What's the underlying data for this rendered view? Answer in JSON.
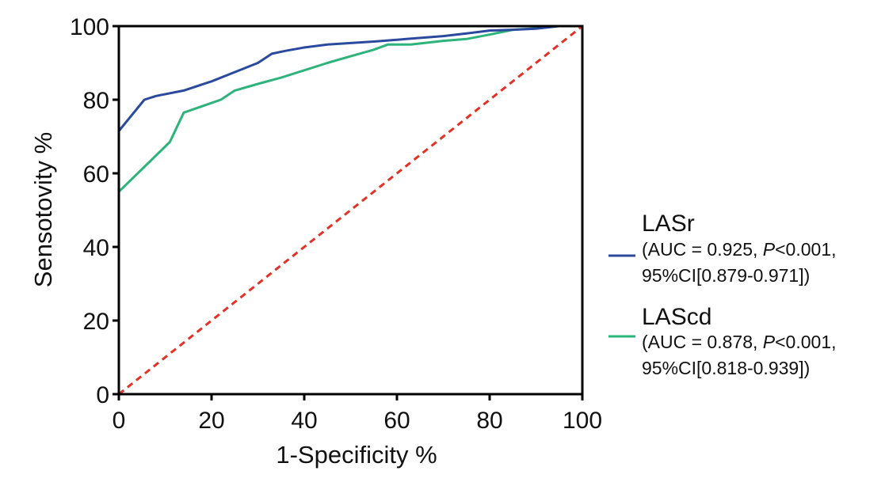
{
  "chart_data": {
    "type": "line",
    "xlabel": "1-Specificity %",
    "ylabel": "Sensotovity %",
    "xlim": [
      0,
      100
    ],
    "ylim": [
      0,
      100
    ],
    "xticks": [
      "0",
      "20",
      "40",
      "60",
      "80",
      "100"
    ],
    "yticks": [
      "0",
      "20",
      "40",
      "60",
      "80",
      "100"
    ],
    "grid": false,
    "legend_position": "right",
    "series": [
      {
        "name": "LASr",
        "color": "#2b4a9e",
        "stat_line1_prefix": "(AUC = 0.925, ",
        "stat_p": "P",
        "stat_line1_suffix": "<0.001,",
        "stat_line2": "95%CI[0.879-0.971])",
        "x": [
          0,
          0,
          5.5,
          8,
          14,
          20,
          25,
          30,
          33,
          36,
          40,
          45,
          50,
          55,
          60,
          65,
          70,
          75,
          80,
          85,
          90,
          95,
          100
        ],
        "y": [
          0,
          71.5,
          80,
          81,
          82.5,
          85,
          87.5,
          90,
          92.5,
          93.3,
          94.2,
          95,
          95.4,
          95.8,
          96.3,
          96.8,
          97.3,
          98,
          98.8,
          99,
          99.3,
          100,
          100
        ]
      },
      {
        "name": "LAScd",
        "color": "#2db37b",
        "stat_line1_prefix": "(AUC = 0.878, ",
        "stat_p": "P",
        "stat_line1_suffix": "<0.001,",
        "stat_line2": "95%CI[0.818-0.939])",
        "x": [
          0,
          0,
          11,
          14,
          22,
          25,
          30,
          35,
          40,
          45,
          50,
          55,
          58,
          63,
          70,
          75,
          80,
          85,
          90,
          93,
          100
        ],
        "y": [
          0,
          55,
          68.5,
          76.5,
          80,
          82.5,
          84.3,
          86,
          88,
          90,
          91.8,
          93.6,
          95,
          95,
          96,
          96.5,
          97.7,
          99,
          99.4,
          100,
          100
        ]
      },
      {
        "color": "#e53025",
        "style": "dashed",
        "x": [
          0,
          100
        ],
        "y": [
          0,
          100
        ]
      }
    ]
  }
}
